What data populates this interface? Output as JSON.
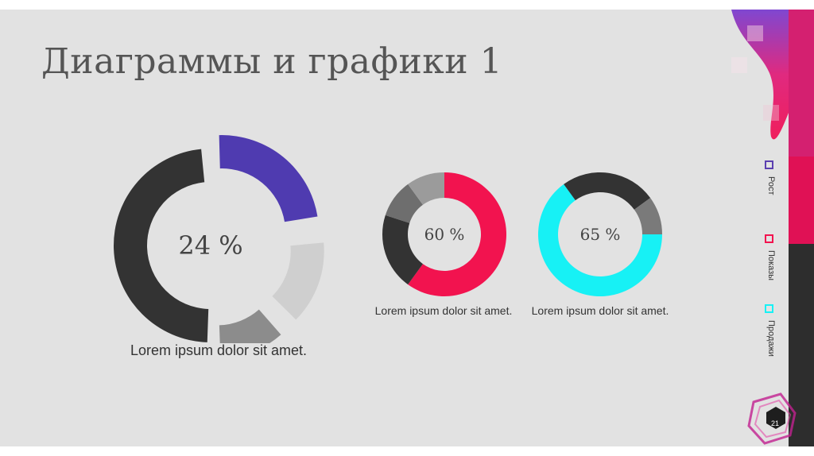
{
  "title": "Диаграммы и графики 1",
  "chart_data": [
    {
      "type": "pie",
      "center_label": "24 %",
      "slices": [
        {
          "value": 49,
          "color": "#333333"
        },
        {
          "value": 24,
          "color": "#4f3bb0"
        },
        {
          "value": 15,
          "color": "#cfcfcf"
        },
        {
          "value": 12,
          "color": "#8c8c8c"
        }
      ],
      "caption": "Lorem ipsum dolor sit amet."
    },
    {
      "type": "pie",
      "center_label": "60 %",
      "slices": [
        {
          "value": 60,
          "color": "#f2134f"
        },
        {
          "value": 20,
          "color": "#333333"
        },
        {
          "value": 10,
          "color": "#6e6e6e"
        },
        {
          "value": 10,
          "color": "#9b9b9b"
        }
      ],
      "caption": "Lorem ipsum dolor sit amet."
    },
    {
      "type": "pie",
      "center_label": "65 %",
      "slices": [
        {
          "value": 65,
          "color": "#17f1f5"
        },
        {
          "value": 25,
          "color": "#333333"
        },
        {
          "value": 10,
          "color": "#7a7a7a"
        }
      ],
      "caption": "Lorem ipsum dolor sit amet."
    }
  ],
  "legend": [
    {
      "label": "Рост",
      "color": "#5b3fb0"
    },
    {
      "label": "Показы",
      "color": "#f2134f"
    },
    {
      "label": "Продажи",
      "color": "#17f1f5"
    }
  ],
  "page_number": "21",
  "colors": {
    "background": "#e2e2e2",
    "accent_pink": "#f2134f",
    "accent_purple": "#5b3fb0",
    "accent_cyan": "#17f1f5"
  }
}
